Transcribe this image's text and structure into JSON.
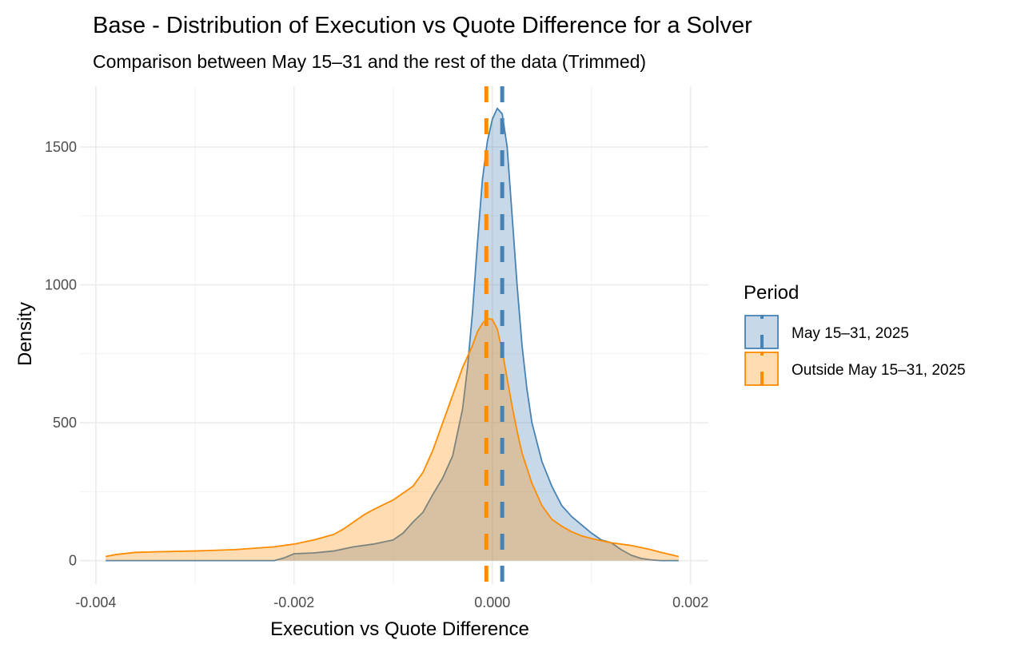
{
  "chart_data": {
    "type": "area",
    "subtype": "density",
    "title": "Base - Distribution of Execution vs Quote Difference for a Solver",
    "subtitle": "Comparison between May 15–31 and the rest of the data (Trimmed)",
    "xlabel": "Execution vs Quote Difference",
    "ylabel": "Density",
    "xlim": [
      -0.00416,
      0.00218
    ],
    "ylim": [
      -85,
      1720
    ],
    "x_ticks": [
      -0.004,
      -0.002,
      0.0,
      0.002
    ],
    "x_tick_labels": [
      "-0.004",
      "-0.002",
      "0.000",
      "0.002"
    ],
    "x_minor_ticks": [
      -0.003,
      -0.001,
      0.001
    ],
    "y_ticks": [
      0,
      500,
      1000,
      1500
    ],
    "y_tick_labels": [
      "0",
      "500",
      "1000",
      "1500"
    ],
    "y_minor_ticks": [
      250,
      750,
      1250
    ],
    "grid": true,
    "legend": {
      "title": "Period",
      "position": "right"
    },
    "series": [
      {
        "name": "May 15–31, 2025",
        "line_color": "#4682B4",
        "fill_color": "#4682B4",
        "fill_opacity": 0.3,
        "mean": 0.0001,
        "x": [
          -0.0039,
          -0.003,
          -0.0022,
          -0.0021,
          -0.002,
          -0.0018,
          -0.0016,
          -0.0014,
          -0.0012,
          -0.001,
          -0.0009,
          -0.0008,
          -0.0007,
          -0.0006,
          -0.0005,
          -0.0004,
          -0.0003,
          -0.00025,
          -0.0002,
          -0.00015,
          -0.0001,
          -5e-05,
          0.0,
          5e-05,
          0.0001,
          0.00015,
          0.0002,
          0.00025,
          0.0003,
          0.00035,
          0.0004,
          0.0005,
          0.0006,
          0.0007,
          0.0008,
          0.0009,
          0.001,
          0.0011,
          0.0012,
          0.0013,
          0.0014,
          0.0015,
          0.0016,
          0.0017,
          0.00188
        ],
        "y": [
          0,
          0,
          0,
          10,
          25,
          28,
          35,
          50,
          60,
          75,
          100,
          140,
          175,
          240,
          300,
          380,
          550,
          700,
          900,
          1150,
          1380,
          1520,
          1600,
          1640,
          1620,
          1500,
          1250,
          1000,
          780,
          620,
          500,
          360,
          270,
          200,
          160,
          130,
          100,
          75,
          65,
          40,
          20,
          8,
          3,
          0,
          0
        ]
      },
      {
        "name": "Outside May 15–31, 2025",
        "line_color": "#FF8C00",
        "fill_color": "#FF8C00",
        "fill_opacity": 0.3,
        "mean": -6e-05,
        "x": [
          -0.0039,
          -0.0038,
          -0.0036,
          -0.0034,
          -0.003,
          -0.0026,
          -0.0022,
          -0.002,
          -0.0018,
          -0.0016,
          -0.0015,
          -0.0014,
          -0.0013,
          -0.0012,
          -0.001,
          -0.0008,
          -0.0007,
          -0.0006,
          -0.0005,
          -0.0004,
          -0.0003,
          -0.0002,
          -0.00015,
          -0.0001,
          -5e-05,
          0.0,
          5e-05,
          0.0001,
          0.00015,
          0.0002,
          0.00025,
          0.0003,
          0.0004,
          0.0005,
          0.0006,
          0.0007,
          0.0008,
          0.0009,
          0.001,
          0.0012,
          0.0014,
          0.0016,
          0.0017,
          0.00188
        ],
        "y": [
          15,
          22,
          30,
          32,
          35,
          40,
          50,
          60,
          75,
          95,
          115,
          140,
          165,
          185,
          220,
          270,
          320,
          400,
          500,
          600,
          700,
          780,
          830,
          860,
          878,
          875,
          840,
          760,
          660,
          560,
          470,
          390,
          280,
          200,
          150,
          125,
          105,
          90,
          80,
          65,
          55,
          40,
          30,
          15
        ]
      }
    ]
  }
}
